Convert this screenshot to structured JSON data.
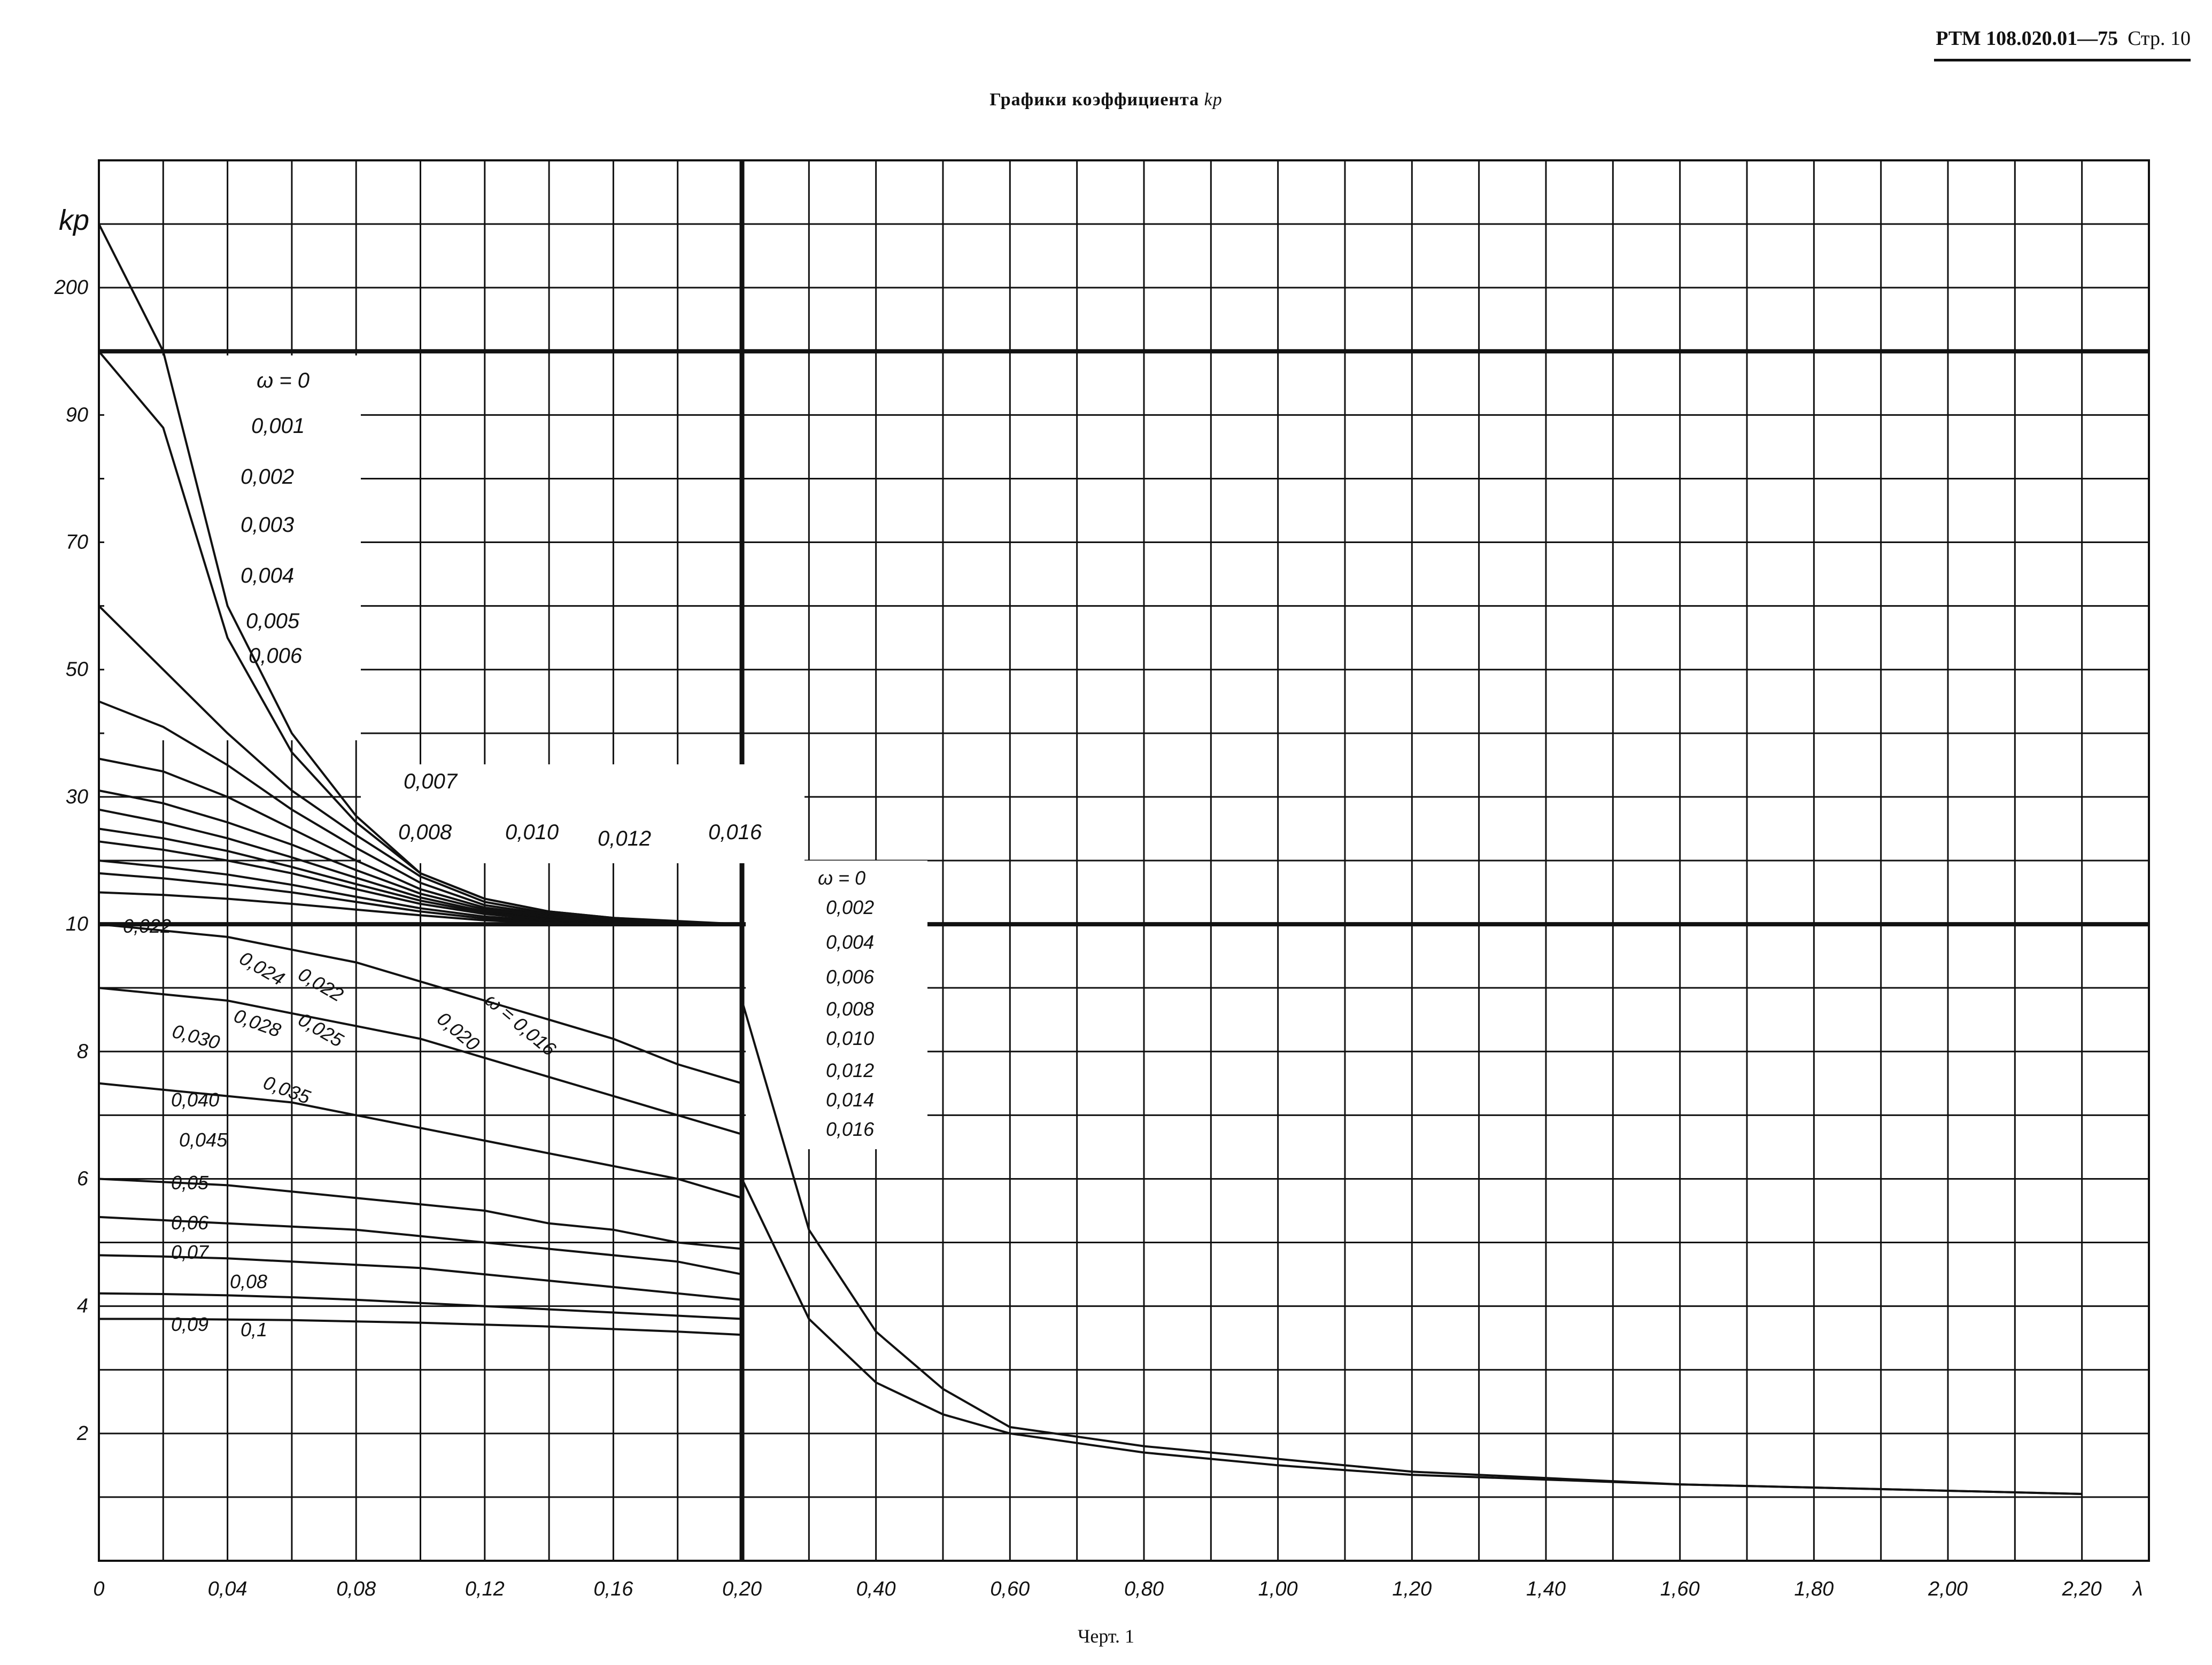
{
  "header": {
    "doc_id": "РТМ 108.020.01—75",
    "page": "Стр. 10"
  },
  "title": {
    "text": "Графики коэффициента",
    "symbol": "kp"
  },
  "caption": "Черт. 1",
  "chart_data": {
    "type": "line",
    "ylabel": "kp",
    "xlabel": "λ",
    "x_ticks_left": [
      "0",
      "0,04",
      "0,08",
      "0,12",
      "0,16",
      "0,20"
    ],
    "x_ticks_right": [
      "0,40",
      "0,60",
      "0,80",
      "1,00",
      "1,20",
      "1,40",
      "1,60",
      "1,80",
      "2,00",
      "2,20"
    ],
    "y_ticks": [
      "200",
      "90",
      "70",
      "50",
      "30",
      "10",
      "8",
      "6",
      "4",
      "2"
    ],
    "x_left_range": [
      0,
      0.2
    ],
    "x_right_range": [
      0.2,
      2.3
    ],
    "left_panel_legend": [
      "ω = 0",
      "0,001",
      "0,002",
      "0,003",
      "0,004",
      "0,005",
      "0,006",
      "0,007",
      "0,008",
      "0,010",
      "0,012",
      "0,016"
    ],
    "right_panel_legend": [
      "ω = 0",
      "0,002",
      "0,004",
      "0,006",
      "0,008",
      "0,010",
      "0,012",
      "0,014",
      "0,016"
    ],
    "lower_labels": [
      "0,022",
      "0,024",
      "0,022",
      "0,025",
      "0,028",
      "0,030",
      "0,020",
      "ω = 0,016",
      "0,035",
      "0,040",
      "0,045",
      "0,05",
      "0,06",
      "0,07",
      "0,08",
      "0,09",
      "0,1"
    ],
    "series": [
      {
        "name": "ω=0",
        "values": [
          260,
          100,
          60,
          40,
          27,
          18,
          14,
          12,
          11,
          10.5,
          10
        ]
      },
      {
        "name": "0,001",
        "values": [
          100,
          88,
          55,
          37,
          26,
          18,
          14,
          12,
          11,
          10.4,
          10
        ]
      },
      {
        "name": "0,002",
        "values": [
          60,
          50,
          40,
          31,
          24,
          17.5,
          13.5,
          11.7,
          10.8,
          10.3,
          10
        ]
      },
      {
        "name": "0,003",
        "values": [
          45,
          41,
          35,
          28,
          22,
          16.5,
          13,
          11.5,
          10.7,
          10.2,
          10
        ]
      },
      {
        "name": "0,004",
        "values": [
          36,
          34,
          30,
          25,
          20,
          15.5,
          12.6,
          11.3,
          10.6,
          10.2,
          10
        ]
      },
      {
        "name": "0,005",
        "values": [
          31,
          29,
          26,
          22.5,
          18.5,
          14.8,
          12.3,
          11.1,
          10.5,
          10.1,
          10
        ]
      },
      {
        "name": "0,006",
        "values": [
          28,
          26,
          23.5,
          20.5,
          17.3,
          14.2,
          12,
          10.9,
          10.4,
          10.1,
          10
        ]
      },
      {
        "name": "0,007",
        "values": [
          25,
          23.5,
          21.5,
          19,
          16.3,
          13.7,
          11.8,
          10.8,
          10.3,
          10.1,
          10
        ]
      },
      {
        "name": "0,008",
        "values": [
          23,
          21.7,
          20,
          18,
          15.5,
          13.2,
          11.6,
          10.7,
          10.3,
          10.1,
          10
        ]
      },
      {
        "name": "0,010",
        "values": [
          20,
          19,
          17.8,
          16.2,
          14.3,
          12.5,
          11.2,
          10.5,
          10.2,
          10,
          10
        ]
      },
      {
        "name": "0,012",
        "values": [
          18,
          17.2,
          16.2,
          15,
          13.5,
          12,
          10.9,
          10.3,
          10.1,
          10,
          10
        ]
      },
      {
        "name": "0,016",
        "values": [
          15,
          14.6,
          14,
          13.2,
          12.3,
          11.4,
          10.6,
          10.2,
          10,
          10,
          10
        ]
      },
      {
        "name": "0,022",
        "values": [
          10,
          9.9,
          9.8,
          9.6,
          9.4,
          9.1,
          8.8,
          8.5,
          8.2,
          7.8,
          7.5
        ]
      },
      {
        "name": "0,030",
        "values": [
          9,
          8.9,
          8.8,
          8.6,
          8.4,
          8.2,
          7.9,
          7.6,
          7.3,
          7,
          6.7
        ]
      },
      {
        "name": "0,040",
        "values": [
          7.5,
          7.4,
          7.3,
          7.2,
          7,
          6.8,
          6.6,
          6.4,
          6.2,
          6,
          5.7
        ]
      },
      {
        "name": "0,05",
        "values": [
          6,
          5.95,
          5.9,
          5.8,
          5.7,
          5.6,
          5.5,
          5.3,
          5.2,
          5,
          4.9
        ]
      },
      {
        "name": "0,06",
        "values": [
          5.4,
          5.35,
          5.3,
          5.25,
          5.2,
          5.1,
          5,
          4.9,
          4.8,
          4.7,
          4.5
        ]
      },
      {
        "name": "0,07",
        "values": [
          4.8,
          4.78,
          4.75,
          4.7,
          4.65,
          4.6,
          4.5,
          4.4,
          4.3,
          4.2,
          4.1
        ]
      },
      {
        "name": "0,08",
        "values": [
          4.2,
          4.19,
          4.17,
          4.14,
          4.1,
          4.05,
          4,
          3.95,
          3.9,
          3.85,
          3.8
        ]
      },
      {
        "name": "0,1",
        "values": [
          3.8,
          3.8,
          3.79,
          3.78,
          3.76,
          3.74,
          3.71,
          3.68,
          3.64,
          3.6,
          3.55
        ]
      }
    ],
    "x": [
      0,
      0.02,
      0.04,
      0.06,
      0.08,
      0.1,
      0.12,
      0.14,
      0.16,
      0.18,
      0.2
    ],
    "right_series_x": [
      0.2,
      0.3,
      0.4,
      0.5,
      0.6,
      0.8,
      1.0,
      1.2,
      1.6,
      2.0,
      2.2
    ],
    "right_series": [
      {
        "name": "ω=0 (right)",
        "values": [
          8.8,
          5.2,
          3.6,
          2.7,
          2.1,
          1.8,
          1.6,
          1.4,
          1.2,
          1.1,
          1.05
        ]
      },
      {
        "name": "0,016 (right)",
        "values": [
          6.0,
          3.8,
          2.8,
          2.3,
          2.0,
          1.7,
          1.5,
          1.35,
          1.2,
          1.1,
          1.05
        ]
      }
    ]
  }
}
